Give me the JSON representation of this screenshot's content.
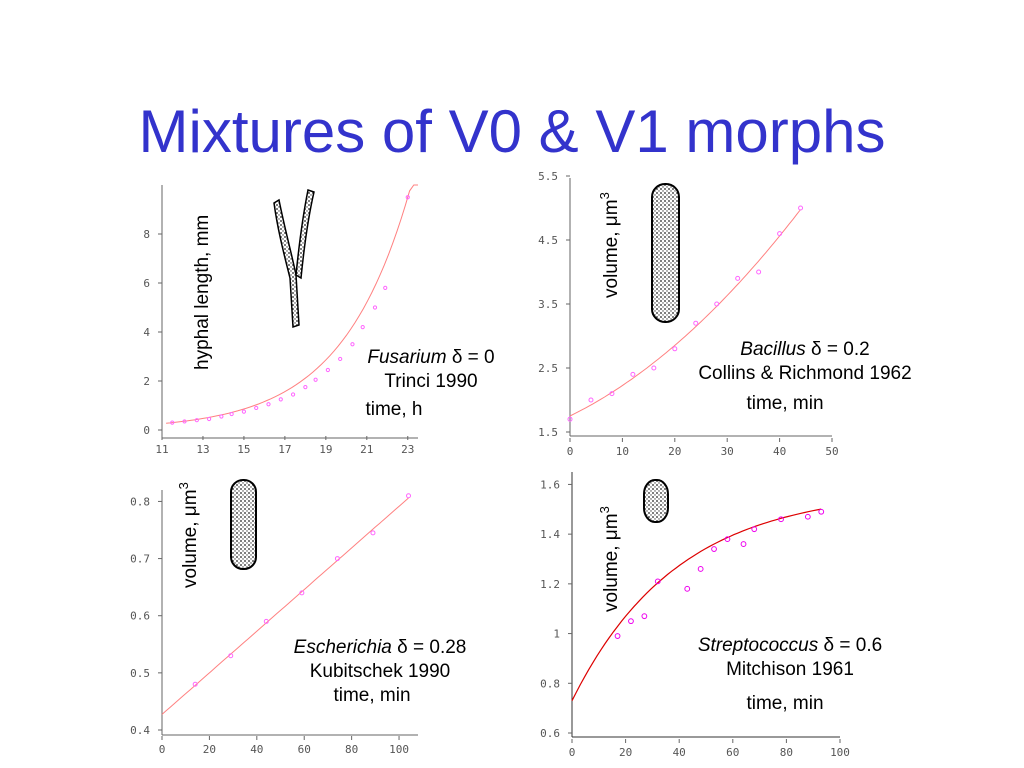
{
  "title": "Mixtures of V0 & V1 morphs",
  "colors": {
    "title": "#3333cc",
    "fit": "#ff8080",
    "fit_strong": "#dd0000",
    "points": "#ff00ff",
    "axis": "#666666"
  },
  "chart_data": [
    {
      "type": "scatter",
      "organism": "Fusarium",
      "delta_symbol": "δ",
      "delta_text": " = 0",
      "reference": "Trinci 1990",
      "xlabel": "time, h",
      "ylabel": "hyphal length, mm",
      "xlim": [
        11,
        23.5
      ],
      "ylim": [
        0,
        10
      ],
      "xticks": [
        11,
        13,
        15,
        17,
        19,
        21,
        23
      ],
      "yticks": [
        0,
        2,
        4,
        6,
        8
      ],
      "x": [
        11.5,
        12.1,
        12.7,
        13.3,
        13.9,
        14.4,
        15.0,
        15.6,
        16.2,
        16.8,
        17.4,
        18.0,
        18.5,
        19.1,
        19.7,
        20.3,
        20.8,
        21.4,
        21.9,
        23.0
      ],
      "y": [
        0.3,
        0.35,
        0.4,
        0.45,
        0.55,
        0.65,
        0.75,
        0.9,
        1.05,
        1.25,
        1.45,
        1.75,
        2.05,
        2.45,
        2.9,
        3.5,
        4.2,
        5.0,
        5.8,
        9.5
      ],
      "fit": "exponential"
    },
    {
      "type": "scatter",
      "organism": "Bacillus",
      "delta_symbol": "δ",
      "delta_text": " = 0.2",
      "reference": "Collins & Richmond 1962",
      "xlabel": "time, min",
      "ylabel": "volume, μm",
      "ylabel_sup": "3",
      "xlim": [
        0,
        50
      ],
      "ylim": [
        1.5,
        5.5
      ],
      "xticks": [
        0,
        10,
        20,
        30,
        40,
        50
      ],
      "yticks": [
        1.5,
        2.5,
        3.5,
        4.5,
        5.5
      ],
      "ytick_labels": [
        "1.5",
        "2.5",
        "3.5",
        "4.5",
        "5.5"
      ],
      "x": [
        0,
        4,
        8,
        12,
        16,
        20,
        24,
        28,
        32,
        36,
        40,
        44
      ],
      "y": [
        1.7,
        2.0,
        2.1,
        2.4,
        2.5,
        2.8,
        3.2,
        3.5,
        3.9,
        4.0,
        4.6,
        5.0
      ],
      "fit": "smooth"
    },
    {
      "type": "scatter",
      "organism": "Escherichia",
      "delta_symbol": "δ",
      "delta_text": " = 0.28",
      "reference": "Kubitschek 1990",
      "xlabel": "time, min",
      "ylabel": "volume, μm",
      "ylabel_sup": "3",
      "xlim": [
        0,
        108
      ],
      "ylim": [
        0.4,
        0.82
      ],
      "xticks": [
        0,
        20,
        40,
        60,
        80,
        100
      ],
      "yticks": [
        0.4,
        0.5,
        0.6,
        0.7,
        0.8
      ],
      "ytick_labels": [
        "0.4",
        "0.5",
        "0.6",
        "0.7",
        "0.8"
      ],
      "x": [
        14,
        29,
        44,
        59,
        74,
        89,
        104
      ],
      "y": [
        0.48,
        0.53,
        0.59,
        0.64,
        0.7,
        0.745,
        0.81
      ],
      "fit": "linear"
    },
    {
      "type": "scatter",
      "organism": "Streptococcus",
      "delta_symbol": "δ",
      "delta_text": " = 0.6",
      "reference": "Mitchison 1961",
      "xlabel": "time, min",
      "ylabel": "volume, μm",
      "ylabel_sup": "3",
      "xlim": [
        0,
        100
      ],
      "ylim": [
        0.6,
        1.65
      ],
      "xticks": [
        0,
        20,
        40,
        60,
        80,
        100
      ],
      "yticks": [
        0.6,
        0.8,
        1,
        1.2,
        1.4,
        1.6
      ],
      "ytick_labels": [
        "0.6",
        "0.8",
        "1",
        "1.2",
        "1.4",
        "1.6"
      ],
      "x": [
        17,
        22,
        27,
        32,
        43,
        48,
        53,
        58,
        64,
        68,
        78,
        88,
        93
      ],
      "y": [
        0.99,
        1.05,
        1.07,
        1.21,
        1.18,
        1.26,
        1.34,
        1.38,
        1.36,
        1.42,
        1.46,
        1.47,
        1.49
      ],
      "fit": "saturating"
    }
  ]
}
